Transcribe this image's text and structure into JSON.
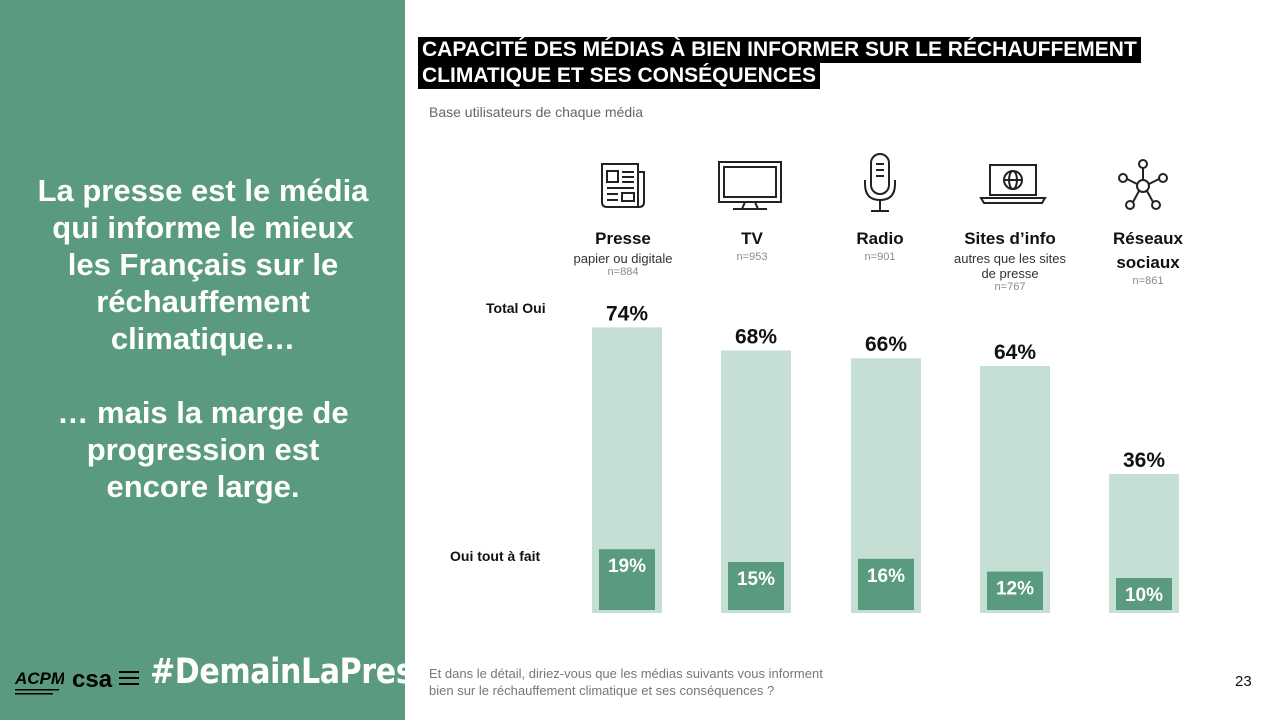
{
  "left_panel": {
    "headline_1": [
      "La presse est le média",
      "qui informe le mieux",
      "les Français sur le",
      "réchauffement",
      "climatique…"
    ],
    "headline_2": [
      "… mais la marge de",
      "progression est",
      "encore large."
    ],
    "hashtag": "#DemainLaPresse",
    "logos": {
      "acpm": "ACPM",
      "csa": "csa"
    }
  },
  "title_lines": [
    "CAPACITÉ DES MÉDIAS À BIEN INFORMER SUR LE RÉCHAUFFEMENT",
    "CLIMATIQUE ET SES CONSÉQUENCES"
  ],
  "subtitle": "Base utilisateurs de chaque média",
  "footnote_lines": [
    "Et dans le détail, diriez-vous que les médias suivants vous informent",
    "bien sur le réchauffement climatique et ses conséquences ?"
  ],
  "page_number": "23",
  "media": [
    {
      "name": "Presse",
      "detail": "papier ou digitale",
      "base": "n=884",
      "icon": "newspaper-icon"
    },
    {
      "name": "TV",
      "detail": "",
      "base": "n=953",
      "icon": "tv-icon"
    },
    {
      "name": "Radio",
      "detail": "",
      "base": "n=901",
      "icon": "microphone-icon"
    },
    {
      "name": "Sites d’info",
      "detail": "autres que les sites de presse",
      "base": "n=767",
      "icon": "laptop-globe-icon"
    },
    {
      "name": "Réseaux sociaux",
      "detail": "",
      "base": "n=861",
      "icon": "network-icon"
    }
  ],
  "chart_data": {
    "type": "bar",
    "categories": [
      "Presse",
      "TV",
      "Radio",
      "Sites d’info",
      "Réseaux sociaux"
    ],
    "series": [
      {
        "name": "Total Oui",
        "values": [
          74,
          68,
          66,
          64,
          36
        ]
      },
      {
        "name": "Oui tout à fait",
        "values": [
          19,
          15,
          16,
          12,
          10
        ]
      }
    ],
    "value_labels_total": [
      "74%",
      "68%",
      "66%",
      "64%",
      "36%"
    ],
    "value_labels_tout": [
      "19%",
      "15%",
      "16%",
      "12%",
      "10%"
    ],
    "ylim": [
      0,
      100
    ],
    "grid": false,
    "colors": {
      "total": "#c5dfd5",
      "tout": "#5a9a7e",
      "tout_label": "#ffffff"
    }
  }
}
